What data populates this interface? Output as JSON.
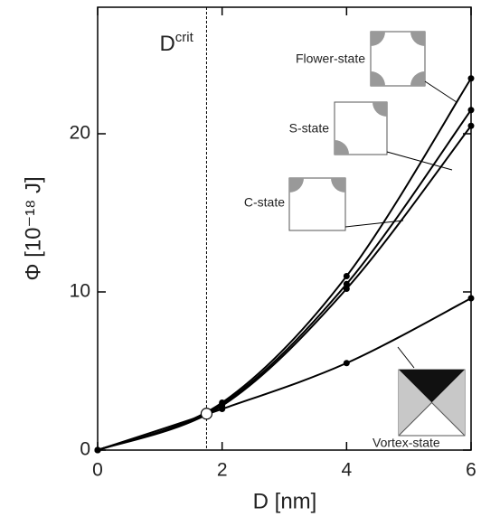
{
  "chart_data": {
    "type": "line",
    "xlabel": "D [nm]",
    "ylabel": "Φ  [10⁻¹⁸ J]",
    "x": [
      0,
      2,
      4,
      6
    ],
    "series": [
      {
        "name": "Flower-state",
        "color": "#000000",
        "values": [
          0,
          3.0,
          11.0,
          23.5
        ]
      },
      {
        "name": "S-state",
        "color": "#000000",
        "values": [
          0,
          2.9,
          10.5,
          21.5
        ]
      },
      {
        "name": "C-state",
        "color": "#000000",
        "values": [
          0,
          2.8,
          10.2,
          20.5
        ]
      },
      {
        "name": "Vortex-state",
        "color": "#000000",
        "values": [
          0,
          2.6,
          5.5,
          9.6
        ]
      }
    ],
    "critical": {
      "label": "D",
      "label_sup": "crit",
      "x": 1.75,
      "y": 2.3
    },
    "xlim": [
      0,
      6
    ],
    "ylim": [
      0,
      28
    ],
    "xticks": [
      0,
      2,
      4,
      6
    ],
    "yticks": [
      0,
      10,
      20
    ]
  }
}
